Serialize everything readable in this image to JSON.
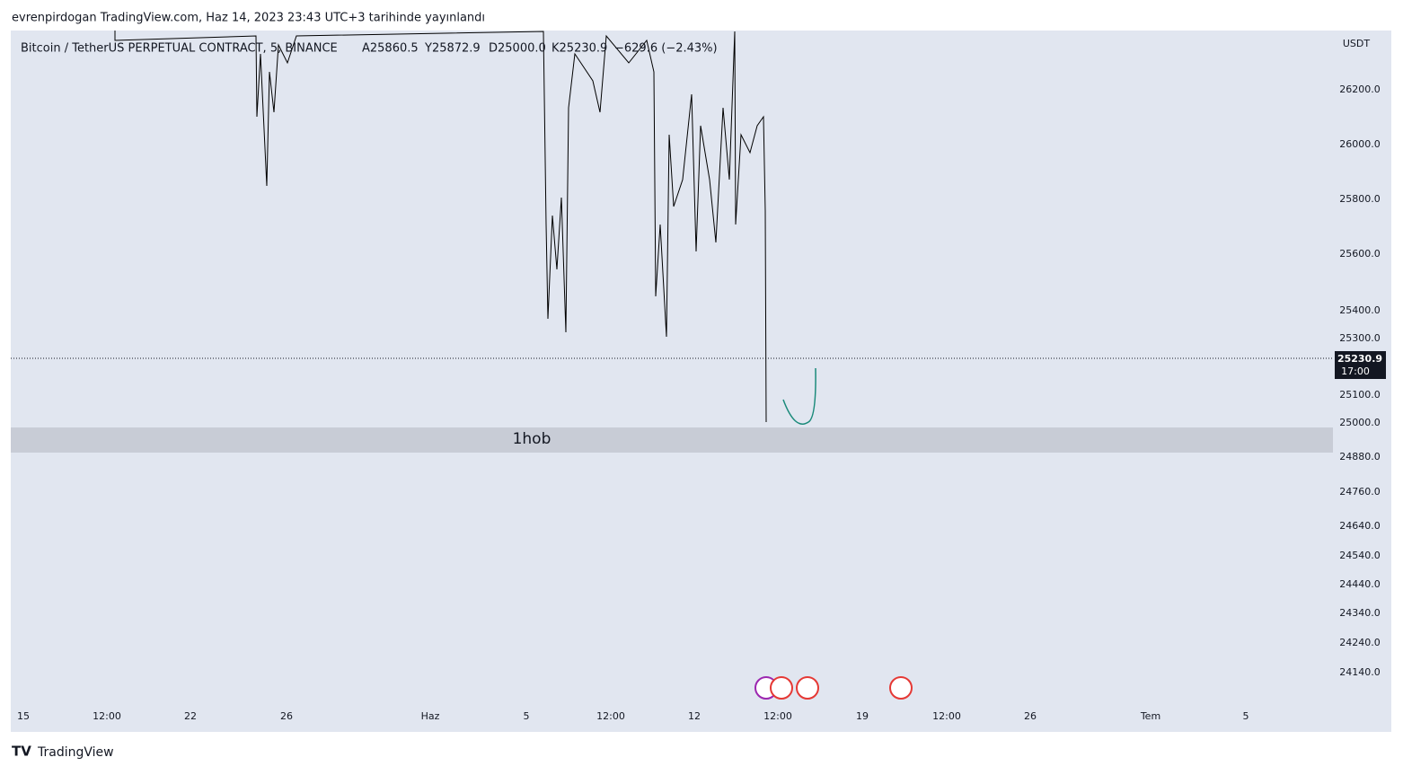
{
  "header": {
    "publisher": "evrenpirdogan TradingView.com, Haz 14, 2023 23:43 UTC+3 tarihinde yayınlandı"
  },
  "legend": {
    "symbol": "Bitcoin / TetherUS PERPETUAL CONTRACT, 5, BINANCE",
    "open": "A25860.5",
    "high": "Y25872.9",
    "low": "D25000.0",
    "close": "K25230.9",
    "change": "−629.6 (−2.43%)"
  },
  "price_axis": {
    "currency": "USDT",
    "labels": [
      "26200.0",
      "26000.0",
      "25800.0",
      "25600.0",
      "25400.0",
      "25300.0",
      "25100.0",
      "25000.0",
      "24880.0",
      "24760.0",
      "24640.0",
      "24540.0",
      "24440.0",
      "24340.0",
      "24240.0",
      "24140.0"
    ]
  },
  "current_price": {
    "price": "25230.9",
    "countdown": "17:00"
  },
  "zone": {
    "label": "1hob"
  },
  "time_axis": {
    "labels": [
      "15",
      "12:00",
      "22",
      "26",
      "Haz",
      "5",
      "12:00",
      "12",
      "12:00",
      "19",
      "12:00",
      "26",
      "Tem",
      "5"
    ]
  },
  "footer": {
    "brand": "TradingView"
  }
}
